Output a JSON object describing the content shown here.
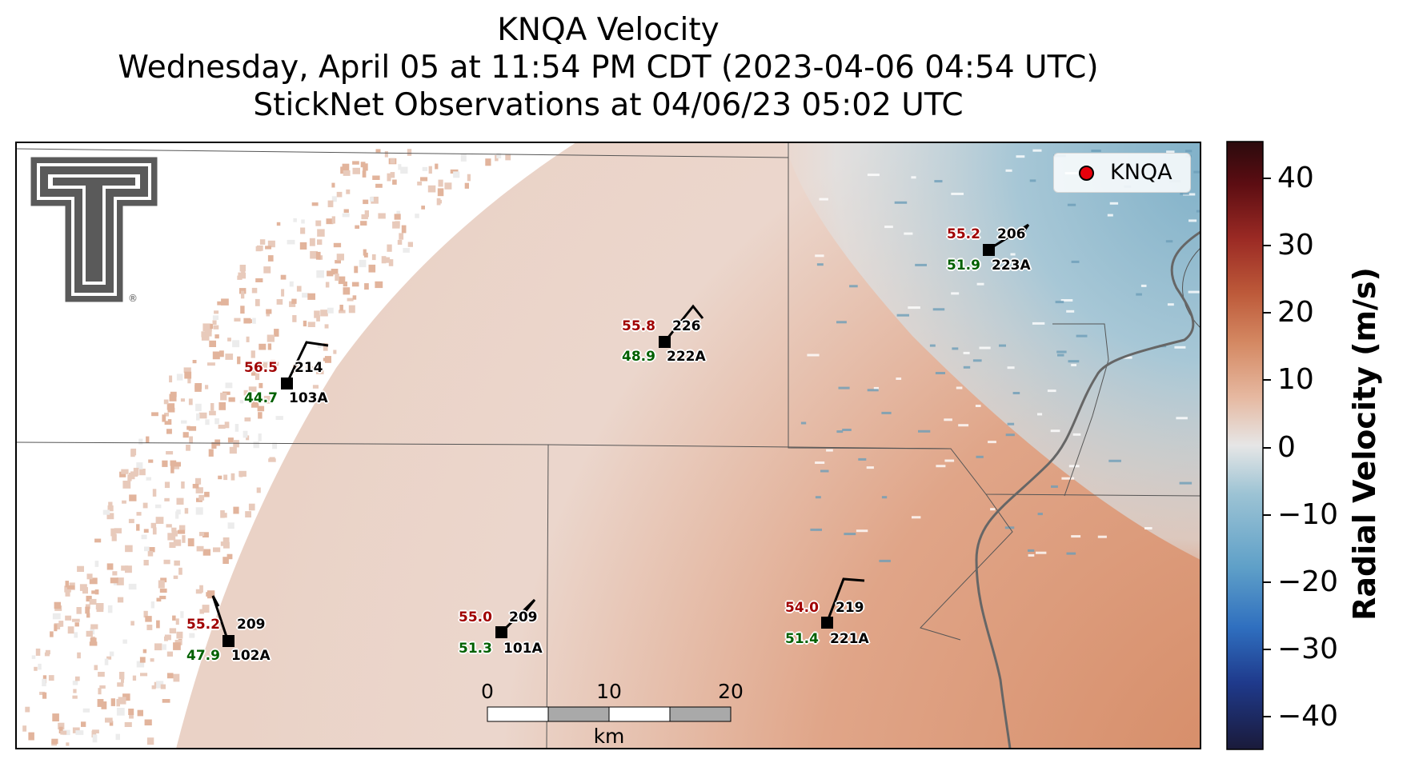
{
  "title": {
    "line1": "KNQA Velocity",
    "line2": "Wednesday, April 05 at 11:54 PM CDT (2023-04-06 04:54 UTC)",
    "line3": "StickNet Observations at 04/06/23 05:02 UTC"
  },
  "legend": {
    "label": "KNQA",
    "marker_color": "#e8000b"
  },
  "logo": {
    "name": "texas-tech-double-t-logo",
    "mark": "®"
  },
  "colorbar": {
    "label": "Radial Velocity (m/s)",
    "ticks": [
      "40",
      "30",
      "20",
      "10",
      "0",
      "−10",
      "−20",
      "−30",
      "−40"
    ],
    "range": [
      -45,
      45
    ],
    "colors": [
      "#1a1a3a",
      "#1f3a8c",
      "#2f6fbf",
      "#5fa0c8",
      "#9cc3d4",
      "#e6e6e6",
      "#e6b8a0",
      "#d48862",
      "#bd5a3a",
      "#9b2a24",
      "#5c0d12",
      "#2b0a0d"
    ]
  },
  "stations": [
    {
      "id": "103A",
      "num": "214",
      "temp": "56.5",
      "dew": "44.7"
    },
    {
      "id": "222A",
      "num": "226",
      "temp": "55.8",
      "dew": "48.9"
    },
    {
      "id": "223A",
      "num": "206",
      "temp": "55.2",
      "dew": "51.9"
    },
    {
      "id": "102A",
      "num": "209",
      "temp": "55.2",
      "dew": "47.9"
    },
    {
      "id": "101A",
      "num": "209",
      "temp": "55.0",
      "dew": "51.3"
    },
    {
      "id": "221A",
      "num": "219",
      "temp": "54.0",
      "dew": "51.4"
    }
  ],
  "scalebar": {
    "ticks": [
      "0",
      "10",
      "20"
    ],
    "unit": "km"
  }
}
